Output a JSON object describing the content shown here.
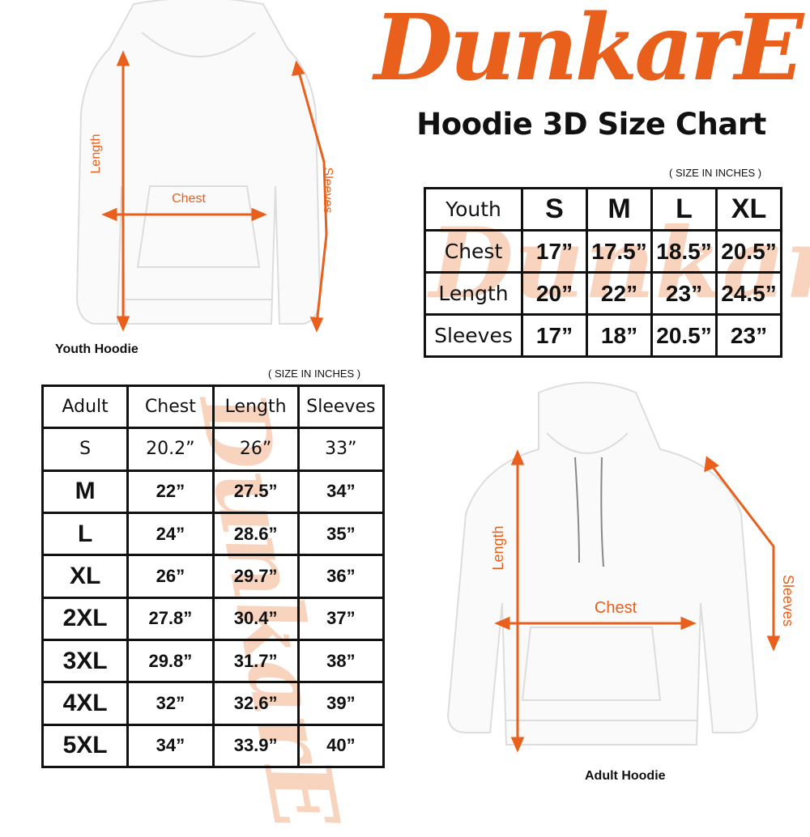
{
  "brand": {
    "logo_text": "DunkarE",
    "color": "#E8601C"
  },
  "title": "Hoodie 3D Size Chart",
  "youth": {
    "units": "( SIZE IN INCHES )",
    "caption": "Youth Hoodie",
    "diagram_labels": {
      "length": "Length",
      "chest": "Chest",
      "sleeves": "Sleeves"
    },
    "header": [
      "Youth",
      "S",
      "M",
      "L",
      "XL"
    ],
    "rows": [
      [
        "Chest",
        "17”",
        "17.5”",
        "18.5”",
        "20.5”"
      ],
      [
        "Length",
        "20”",
        "22”",
        "23”",
        "24.5”"
      ],
      [
        "Sleeves",
        "17”",
        "18”",
        "20.5”",
        "23”"
      ]
    ]
  },
  "adult": {
    "units": "( SIZE IN INCHES )",
    "caption": "Adult Hoodie",
    "diagram_labels": {
      "length": "Length",
      "chest": "Chest",
      "sleeves": "Sleeves"
    },
    "header": [
      "Adult",
      "Chest",
      "Length",
      "Sleeves"
    ],
    "rows": [
      [
        "S",
        "20.2”",
        "26”",
        "33”"
      ],
      [
        "M",
        "22”",
        "27.5”",
        "34”"
      ],
      [
        "L",
        "24”",
        "28.6”",
        "35”"
      ],
      [
        "XL",
        "26”",
        "29.7”",
        "36”"
      ],
      [
        "2XL",
        "27.8”",
        "30.4”",
        "37”"
      ],
      [
        "3XL",
        "29.8”",
        "31.7”",
        "38”"
      ],
      [
        "4XL",
        "32”",
        "32.6”",
        "39”"
      ],
      [
        "5XL",
        "34”",
        "33.9”",
        "40”"
      ]
    ]
  }
}
